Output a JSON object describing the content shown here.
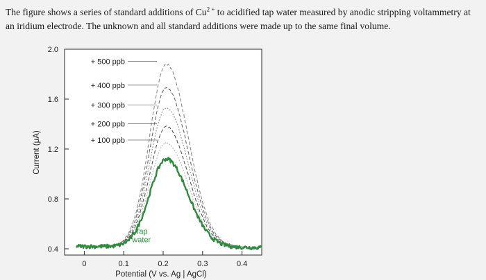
{
  "intro": {
    "text_before": "The figure shows a series of standard additions of Cu",
    "superscript": "2 +",
    "text_after": " to acidified tap water measured by anodic stripping voltammetry at an iridium electrode. The unknown and all standard additions were made up to the same final volume."
  },
  "chart_data": {
    "type": "line",
    "xlabel": "Potential (V vs. Ag | AgCl)",
    "ylabel": "Current (μA)",
    "xlim": [
      -0.05,
      0.45
    ],
    "ylim": [
      0.35,
      2.0
    ],
    "x_ticks": [
      0,
      0.1,
      0.2,
      0.3,
      0.4
    ],
    "x_tick_labels": [
      "0",
      "0.1",
      "0.2",
      "0.3",
      "0.4"
    ],
    "y_ticks": [
      0.4,
      0.8,
      1.2,
      1.6,
      2.0
    ],
    "y_tick_labels": [
      "0.4",
      "0.8",
      "1.2",
      "1.6",
      "2.0"
    ],
    "grid": false,
    "baseline": {
      "start_x": -0.02,
      "start_y": 0.42,
      "end_x": 0.45,
      "end_y": 0.41
    },
    "series": [
      {
        "name": "Tap water",
        "peak_x": 0.208,
        "peak_y": 1.12,
        "color": "#2e8b3d",
        "style": "solid"
      },
      {
        "name": "+ 100 ppb",
        "peak_x": 0.208,
        "peak_y": 1.25,
        "color": "#bdbdbd",
        "style": "dotted"
      },
      {
        "name": "+ 200 ppb",
        "peak_x": 0.208,
        "peak_y": 1.38,
        "color": "#555555",
        "style": "dashed"
      },
      {
        "name": "+ 300 ppb",
        "peak_x": 0.208,
        "peak_y": 1.53,
        "color": "#9a9a9a",
        "style": "dotted"
      },
      {
        "name": "+ 400 ppb",
        "peak_x": 0.208,
        "peak_y": 1.69,
        "color": "#6a6a6a",
        "style": "dashed"
      },
      {
        "name": "+ 500 ppb",
        "peak_x": 0.208,
        "peak_y": 1.88,
        "color": "#8a8a8a",
        "style": "dashed"
      }
    ],
    "annotations": [
      "+ 500 ppb",
      "+ 400 ppb",
      "+ 300 ppb",
      "+ 200 ppb",
      "+ 100 ppb",
      "Tap water"
    ]
  },
  "colors": {
    "background": "#f2f2f3",
    "tap_water": "#2e8b3d",
    "axis": "#1f1f1f"
  }
}
